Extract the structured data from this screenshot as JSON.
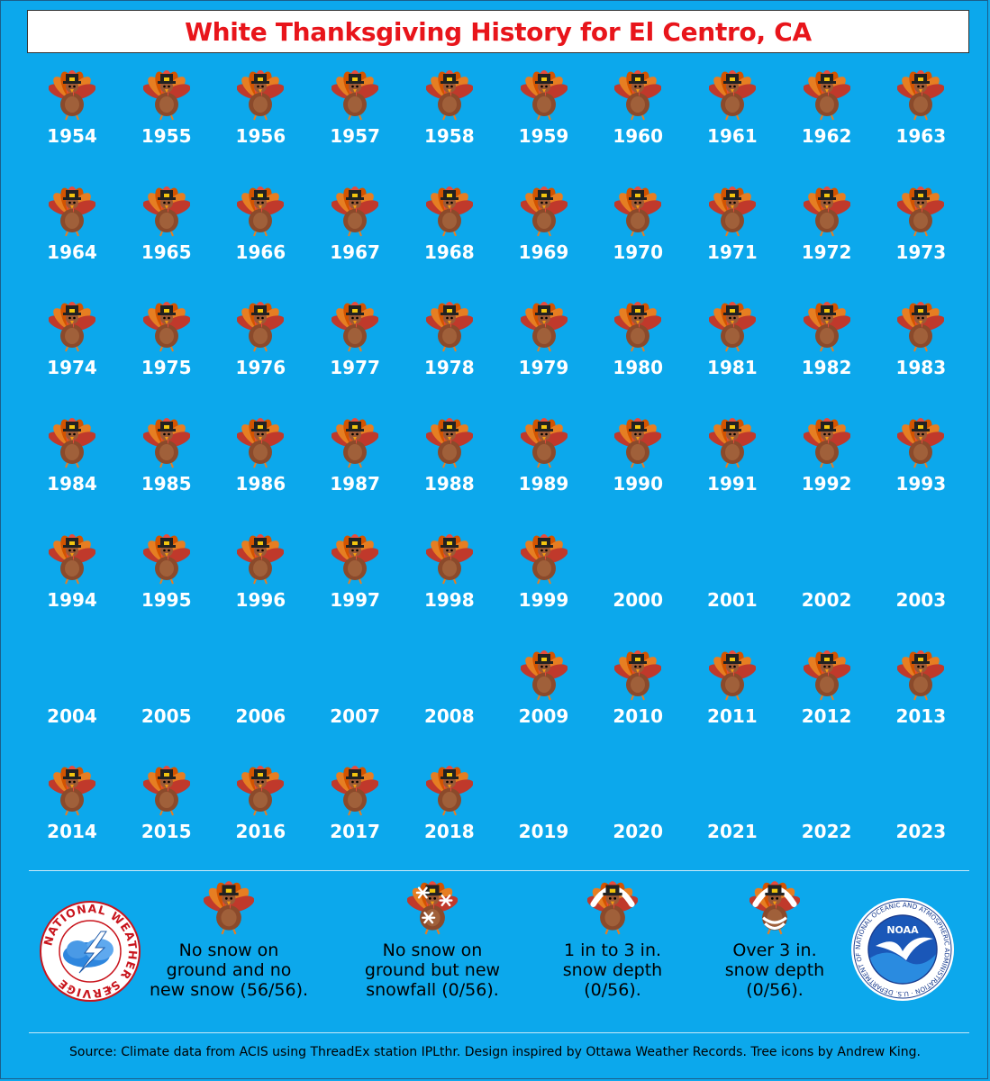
{
  "title": "White Thanksgiving History for El Centro, CA",
  "years": [
    {
      "year": "1954",
      "icon": "turkey-icon"
    },
    {
      "year": "1955",
      "icon": "turkey-icon"
    },
    {
      "year": "1956",
      "icon": "turkey-icon"
    },
    {
      "year": "1957",
      "icon": "turkey-icon"
    },
    {
      "year": "1958",
      "icon": "turkey-icon"
    },
    {
      "year": "1959",
      "icon": "turkey-icon"
    },
    {
      "year": "1960",
      "icon": "turkey-icon"
    },
    {
      "year": "1961",
      "icon": "turkey-icon"
    },
    {
      "year": "1962",
      "icon": "turkey-icon"
    },
    {
      "year": "1963",
      "icon": "turkey-icon"
    },
    {
      "year": "1964",
      "icon": "turkey-icon"
    },
    {
      "year": "1965",
      "icon": "turkey-icon"
    },
    {
      "year": "1966",
      "icon": "turkey-icon"
    },
    {
      "year": "1967",
      "icon": "turkey-icon"
    },
    {
      "year": "1968",
      "icon": "turkey-icon"
    },
    {
      "year": "1969",
      "icon": "turkey-icon"
    },
    {
      "year": "1970",
      "icon": "turkey-icon"
    },
    {
      "year": "1971",
      "icon": "turkey-icon"
    },
    {
      "year": "1972",
      "icon": "turkey-icon"
    },
    {
      "year": "1973",
      "icon": "turkey-icon"
    },
    {
      "year": "1974",
      "icon": "turkey-icon"
    },
    {
      "year": "1975",
      "icon": "turkey-icon"
    },
    {
      "year": "1976",
      "icon": "turkey-icon"
    },
    {
      "year": "1977",
      "icon": "turkey-icon"
    },
    {
      "year": "1978",
      "icon": "turkey-icon"
    },
    {
      "year": "1979",
      "icon": "turkey-icon"
    },
    {
      "year": "1980",
      "icon": "turkey-icon"
    },
    {
      "year": "1981",
      "icon": "turkey-icon"
    },
    {
      "year": "1982",
      "icon": "turkey-icon"
    },
    {
      "year": "1983",
      "icon": "turkey-icon"
    },
    {
      "year": "1984",
      "icon": "turkey-icon"
    },
    {
      "year": "1985",
      "icon": "turkey-icon"
    },
    {
      "year": "1986",
      "icon": "turkey-icon"
    },
    {
      "year": "1987",
      "icon": "turkey-icon"
    },
    {
      "year": "1988",
      "icon": "turkey-icon"
    },
    {
      "year": "1989",
      "icon": "turkey-icon"
    },
    {
      "year": "1990",
      "icon": "turkey-icon"
    },
    {
      "year": "1991",
      "icon": "turkey-icon"
    },
    {
      "year": "1992",
      "icon": "turkey-icon"
    },
    {
      "year": "1993",
      "icon": "turkey-icon"
    },
    {
      "year": "1994",
      "icon": "turkey-icon"
    },
    {
      "year": "1995",
      "icon": "turkey-icon"
    },
    {
      "year": "1996",
      "icon": "turkey-icon"
    },
    {
      "year": "1997",
      "icon": "turkey-icon"
    },
    {
      "year": "1998",
      "icon": "turkey-icon"
    },
    {
      "year": "1999",
      "icon": "turkey-icon"
    },
    {
      "year": "2000",
      "icon": ""
    },
    {
      "year": "2001",
      "icon": ""
    },
    {
      "year": "2002",
      "icon": ""
    },
    {
      "year": "2003",
      "icon": ""
    },
    {
      "year": "2004",
      "icon": ""
    },
    {
      "year": "2005",
      "icon": ""
    },
    {
      "year": "2006",
      "icon": ""
    },
    {
      "year": "2007",
      "icon": ""
    },
    {
      "year": "2008",
      "icon": ""
    },
    {
      "year": "2009",
      "icon": "turkey-icon"
    },
    {
      "year": "2010",
      "icon": "turkey-icon"
    },
    {
      "year": "2011",
      "icon": "turkey-icon"
    },
    {
      "year": "2012",
      "icon": "turkey-icon"
    },
    {
      "year": "2013",
      "icon": "turkey-icon"
    },
    {
      "year": "2014",
      "icon": "turkey-icon"
    },
    {
      "year": "2015",
      "icon": "turkey-icon"
    },
    {
      "year": "2016",
      "icon": "turkey-icon"
    },
    {
      "year": "2017",
      "icon": "turkey-icon"
    },
    {
      "year": "2018",
      "icon": "turkey-icon"
    },
    {
      "year": "2019",
      "icon": ""
    },
    {
      "year": "2020",
      "icon": ""
    },
    {
      "year": "2021",
      "icon": ""
    },
    {
      "year": "2022",
      "icon": ""
    },
    {
      "year": "2023",
      "icon": ""
    }
  ],
  "legend": [
    {
      "icon": "turkey-icon",
      "lines": [
        "No snow on",
        "ground and no",
        "new snow (56/56)."
      ]
    },
    {
      "icon": "turkey-snowflake-icon",
      "lines": [
        "No snow on",
        "ground but new",
        "snowfall (0/56)."
      ]
    },
    {
      "icon": "turkey-snowcap-icon",
      "lines": [
        "1 in to 3 in.",
        "snow depth",
        "(0/56)."
      ]
    },
    {
      "icon": "turkey-snow-covered-icon",
      "lines": [
        "Over 3 in.",
        "snow depth",
        "(0/56)."
      ]
    }
  ],
  "logos": {
    "nws_text": "NATIONAL WEATHER SERVICE",
    "noaa_text": "NOAA",
    "noaa_ring_text": "NATIONAL OCEANIC AND ATMOSPHERIC ADMINISTRATION · U.S. DEPARTMENT OF COMMERCE"
  },
  "source": "Source: Climate data from ACIS using ThreadEx station IPLthr. Design inspired by Ottawa Weather Records. Tree icons by Andrew King.",
  "colors": {
    "background": "#0ca8ec",
    "title": "#e8151b",
    "year_text": "#ffffff"
  }
}
